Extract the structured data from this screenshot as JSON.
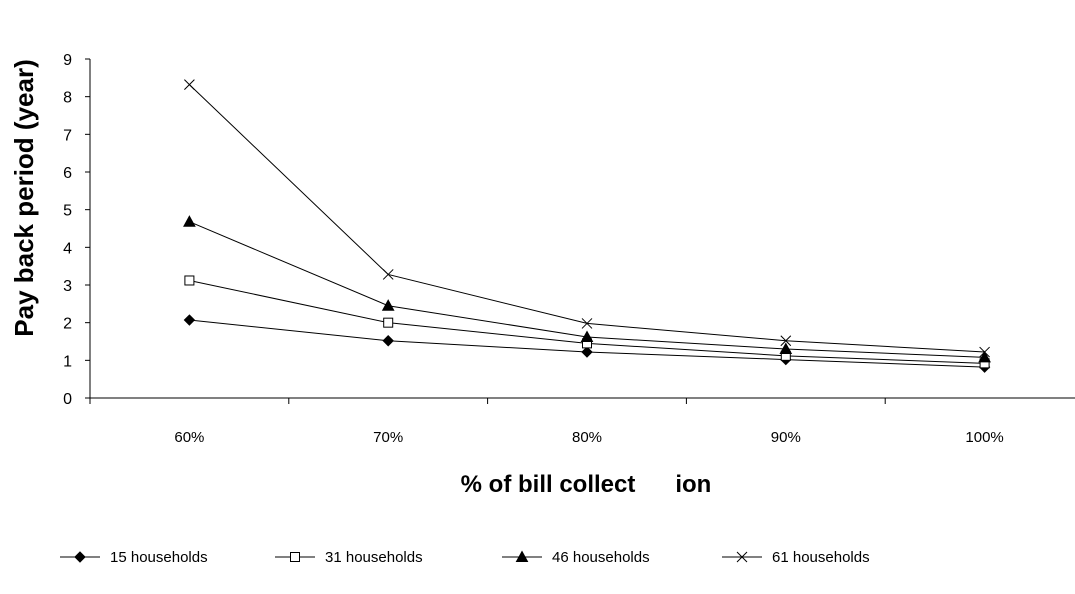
{
  "chart_data": {
    "type": "line",
    "title": "",
    "xlabel": "% of bill collect      ion",
    "ylabel": "Pay back period (year)",
    "categories": [
      "60%",
      "70%",
      "80%",
      "90%",
      "100%"
    ],
    "ylim": [
      0,
      9
    ],
    "yticks": [
      "0",
      "1",
      "2",
      "3",
      "4",
      "5",
      "6",
      "7",
      "8",
      "9"
    ],
    "grid": false,
    "legend_position": "bottom",
    "series": [
      {
        "name": "15 households",
        "marker": "diamond",
        "values": [
          2.07,
          1.52,
          1.22,
          1.02,
          0.82
        ]
      },
      {
        "name": "31 households",
        "marker": "square",
        "values": [
          3.12,
          2.0,
          1.45,
          1.12,
          0.92
        ]
      },
      {
        "name": "46 households",
        "marker": "triangle",
        "values": [
          4.68,
          2.45,
          1.62,
          1.3,
          1.08
        ]
      },
      {
        "name": "61 households",
        "marker": "x",
        "values": [
          8.32,
          3.28,
          1.98,
          1.52,
          1.22
        ]
      }
    ]
  }
}
